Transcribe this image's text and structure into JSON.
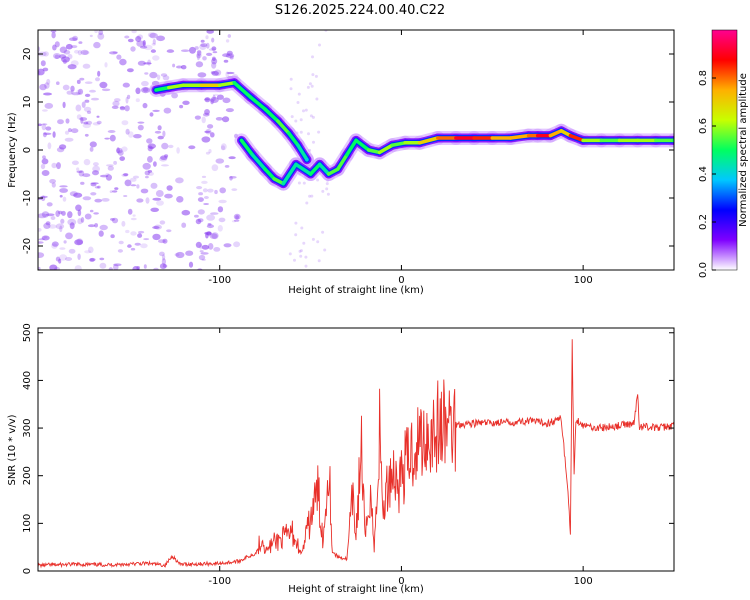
{
  "title": "S126.2025.224.00.40.C22",
  "chart_data": [
    {
      "type": "heatmap",
      "name": "spectrogram",
      "xlabel": "Height of straight line (km)",
      "ylabel": "Frequency (Hz)",
      "xlim": [
        -200,
        150
      ],
      "ylim": [
        -25,
        25
      ],
      "xticks": [
        -100,
        0,
        100
      ],
      "yticks": [
        -20,
        -10,
        0,
        10,
        20
      ],
      "colorbar": {
        "label": "Normalized spectral amplitude",
        "range": [
          0,
          1
        ],
        "ticks": [
          "0.0",
          "0.2",
          "0.4",
          "0.6",
          "0.8"
        ],
        "tick_values": [
          0.0,
          0.2,
          0.4,
          0.6,
          0.8
        ],
        "stops": [
          "#ffffff",
          "#7f00ff",
          "#0000ff",
          "#00c8ff",
          "#00ff60",
          "#c8ff00",
          "#ffb000",
          "#ff0000",
          "#ff0090"
        ]
      },
      "ridge": [
        [
          -135,
          12.5,
          0.5
        ],
        [
          -128,
          13,
          0.6
        ],
        [
          -120,
          13.5,
          0.6
        ],
        [
          -110,
          13.5,
          0.7
        ],
        [
          -100,
          13.5,
          0.6
        ],
        [
          -92,
          14,
          0.5
        ],
        [
          -83,
          11,
          0.5
        ],
        [
          -75,
          8.5,
          0.5
        ],
        [
          -68,
          6,
          0.55
        ],
        [
          -62,
          3.5,
          0.5
        ],
        [
          -57,
          1,
          0.45
        ],
        [
          -52,
          -2,
          0.4
        ],
        [
          -88,
          2,
          0.5
        ],
        [
          -82,
          -1,
          0.45
        ],
        [
          -75,
          -4,
          0.5
        ],
        [
          -70,
          -6,
          0.55
        ],
        [
          -65,
          -7,
          0.45
        ],
        [
          -58,
          -3,
          0.45
        ],
        [
          -50,
          -5,
          0.5
        ],
        [
          -45,
          -3,
          0.45
        ],
        [
          -40,
          -5,
          0.55
        ],
        [
          -35,
          -4,
          0.55
        ],
        [
          -30,
          -1,
          0.5
        ],
        [
          -25,
          2,
          0.5
        ],
        [
          -18,
          0,
          0.55
        ],
        [
          -12,
          -0.5,
          0.6
        ],
        [
          -5,
          1,
          0.55
        ],
        [
          2,
          1.5,
          0.6
        ],
        [
          10,
          1.5,
          0.7
        ],
        [
          20,
          2.5,
          0.8
        ],
        [
          30,
          2.5,
          0.9
        ],
        [
          40,
          2.5,
          0.85
        ],
        [
          50,
          2.5,
          0.75
        ],
        [
          60,
          2.5,
          0.75
        ],
        [
          70,
          3,
          0.8
        ],
        [
          75,
          3,
          0.9
        ],
        [
          82,
          3,
          0.75
        ],
        [
          88,
          4,
          0.7
        ],
        [
          93,
          3,
          0.85
        ],
        [
          100,
          2,
          0.6
        ],
        [
          110,
          2,
          0.55
        ],
        [
          120,
          2,
          0.6
        ],
        [
          130,
          2,
          0.6
        ],
        [
          140,
          2,
          0.55
        ],
        [
          150,
          2,
          0.5
        ]
      ]
    },
    {
      "type": "line",
      "name": "snr",
      "xlabel": "Height of straight line (km)",
      "ylabel": "SNR (10 * v/v)",
      "xlim": [
        -200,
        150
      ],
      "ylim": [
        0,
        510
      ],
      "xticks": [
        -100,
        0,
        100
      ],
      "yticks": [
        0,
        100,
        200,
        300,
        400,
        500
      ],
      "color": "#e8302a",
      "series": [
        {
          "name": "SNR",
          "x": [
            -200,
            -180,
            -160,
            -140,
            -130,
            -126,
            -122,
            -110,
            -100,
            -90,
            -80,
            -77,
            -74,
            -70,
            -60,
            -55,
            -50,
            -46,
            -43,
            -40,
            -38,
            -35,
            -30,
            -27,
            -25,
            -22,
            -20,
            -17,
            -15,
            -12,
            -10,
            -8,
            -5,
            -2,
            0,
            3,
            6,
            10,
            15,
            20,
            25,
            30,
            40,
            50,
            60,
            70,
            80,
            88,
            92,
            93,
            94,
            95,
            96,
            100,
            110,
            120,
            128,
            130,
            131,
            133,
            140,
            150
          ],
          "y": [
            12,
            14,
            13,
            16,
            12,
            32,
            14,
            15,
            16,
            20,
            38,
            70,
            45,
            60,
            80,
            35,
            110,
            170,
            60,
            240,
            40,
            30,
            25,
            150,
            80,
            260,
            60,
            180,
            40,
            290,
            120,
            170,
            220,
            180,
            200,
            230,
            255,
            275,
            290,
            300,
            305,
            308,
            310,
            311,
            312,
            315,
            310,
            320,
            150,
            70,
            480,
            200,
            320,
            305,
            300,
            305,
            310,
            370,
            300,
            305,
            300,
            305
          ]
        }
      ]
    }
  ]
}
